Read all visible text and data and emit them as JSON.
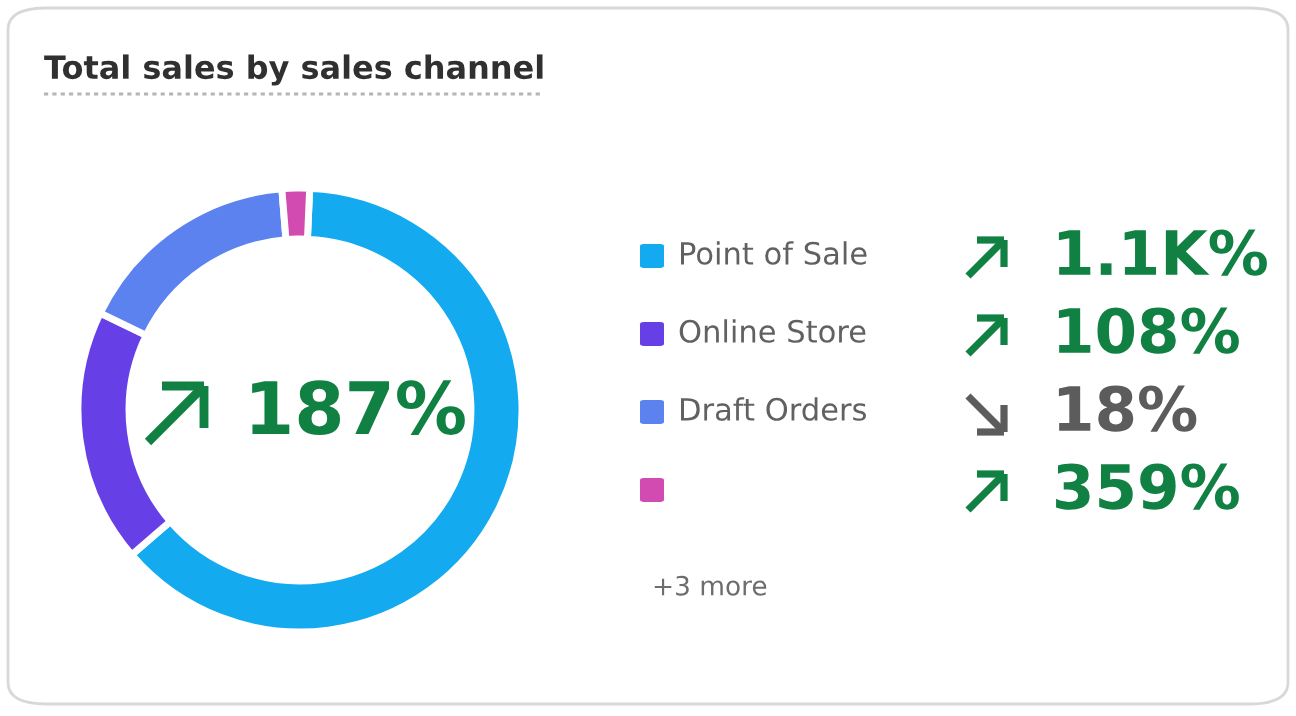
{
  "chart_data": {
    "type": "donut",
    "title": "Total sales by sales channel",
    "categories": [
      "Point of Sale",
      "Online Store",
      "Draft Orders",
      null
    ],
    "values": [
      63,
      18.5,
      16.5,
      2
    ],
    "colors": [
      "#13aaef",
      "#6640e6",
      "#5b82ee",
      "#d24bb0"
    ],
    "legend": "right",
    "annotations": [
      "187%",
      "1.1K%",
      "108%",
      "18%",
      "359%",
      "+3 more"
    ]
  }
}
